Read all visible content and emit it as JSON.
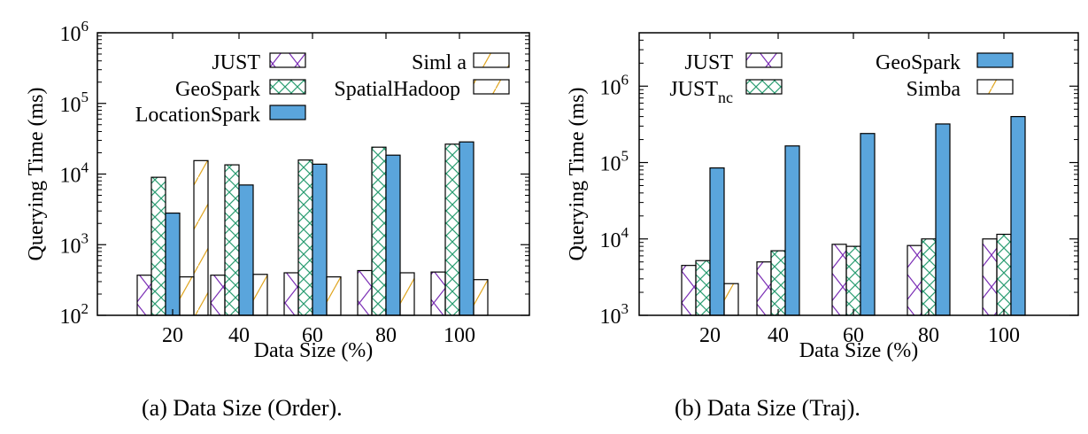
{
  "chart_data": [
    {
      "type": "bar",
      "caption": "(a) Data Size (Order).",
      "xlabel": "Data Size (%)",
      "ylabel": "Querying Time (ms)",
      "yscale": "log",
      "ylim": [
        100,
        1000000
      ],
      "categories": [
        "20",
        "40",
        "60",
        "80",
        "100"
      ],
      "yticks": [
        {
          "base": "10",
          "exp": "2"
        },
        {
          "base": "10",
          "exp": "3"
        },
        {
          "base": "10",
          "exp": "4"
        },
        {
          "base": "10",
          "exp": "5"
        },
        {
          "base": "10",
          "exp": "6"
        }
      ],
      "legend_position": "top",
      "series": [
        {
          "name": "JUST",
          "name_sub": "",
          "values": [
            370,
            370,
            400,
            430,
            410
          ],
          "pattern": "cross",
          "color": "#7b2fb5"
        },
        {
          "name": "GeoSpark",
          "name_sub": "",
          "values": [
            9000,
            13500,
            15800,
            24000,
            26500
          ],
          "pattern": "grid",
          "color": "#2a9d72"
        },
        {
          "name": "LocationSpark",
          "name_sub": "",
          "values": [
            2800,
            7000,
            13800,
            18500,
            28500
          ],
          "pattern": "solid",
          "color": "#5aa5dc"
        },
        {
          "name": "Siml a",
          "name_sub": "",
          "values": [
            350,
            380,
            350,
            400,
            320
          ],
          "pattern": "diag",
          "color": "#e0a520"
        },
        {
          "name": "SpatialHadoop",
          "name_sub": "",
          "values": [
            15500,
            null,
            null,
            null,
            null
          ],
          "pattern": "diag",
          "color": "#e0a520"
        }
      ]
    },
    {
      "type": "bar",
      "caption": "(b) Data Size (Traj).",
      "xlabel": "Data Size (%)",
      "ylabel": "Querying Time (ms)",
      "yscale": "log",
      "ylim": [
        1000,
        5000000
      ],
      "categories": [
        "20",
        "40",
        "60",
        "80",
        "100"
      ],
      "yticks": [
        {
          "base": "10",
          "exp": "3"
        },
        {
          "base": "10",
          "exp": "4"
        },
        {
          "base": "10",
          "exp": "5"
        },
        {
          "base": "10",
          "exp": "6"
        }
      ],
      "legend_position": "top",
      "series": [
        {
          "name": "JUST",
          "name_sub": "",
          "values": [
            4500,
            5000,
            8500,
            8200,
            10000
          ],
          "pattern": "cross",
          "color": "#7b2fb5"
        },
        {
          "name": "JUST",
          "name_sub": "nc",
          "values": [
            5200,
            7000,
            8000,
            10000,
            11500
          ],
          "pattern": "grid",
          "color": "#2a9d72"
        },
        {
          "name": "GeoSpark",
          "name_sub": "",
          "values": [
            85000,
            165000,
            240000,
            320000,
            400000
          ],
          "pattern": "solid",
          "color": "#5aa5dc"
        },
        {
          "name": "Simba",
          "name_sub": "",
          "values": [
            2600,
            null,
            null,
            null,
            null
          ],
          "pattern": "diag",
          "color": "#e0a520"
        }
      ]
    }
  ]
}
